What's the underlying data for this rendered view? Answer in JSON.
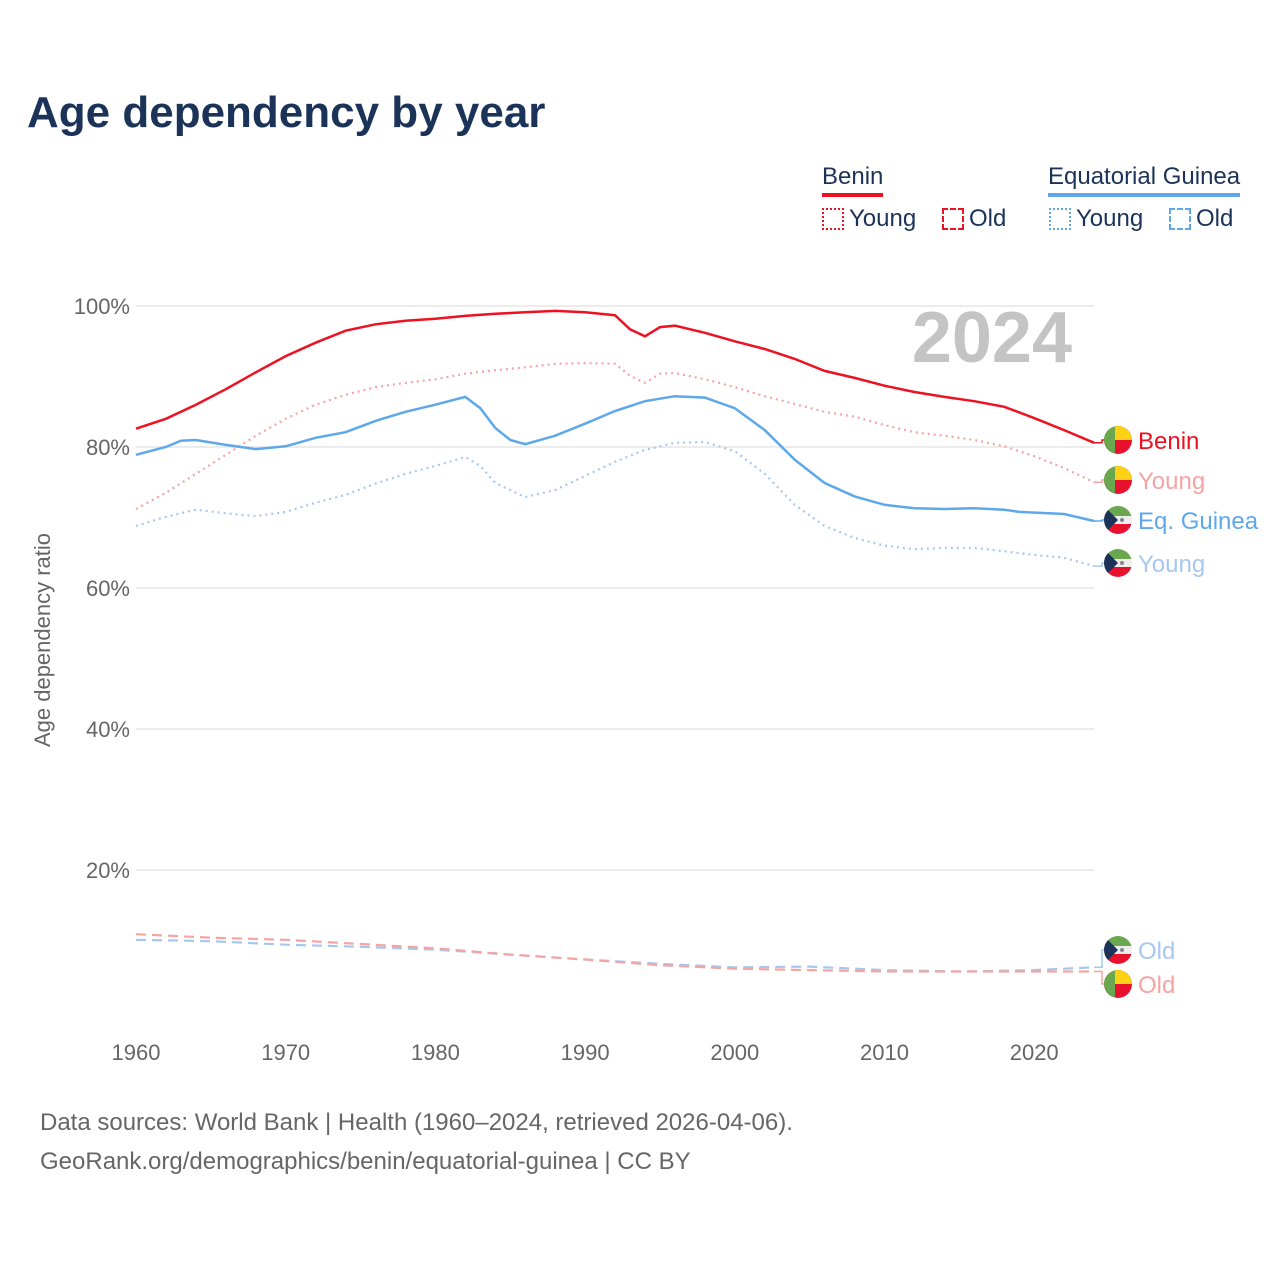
{
  "title": "Age dependency by year",
  "legend": {
    "groups": [
      {
        "name": "Benin",
        "color": "#ee1122",
        "items": [
          {
            "label": "Young",
            "style": "dotted"
          },
          {
            "label": "Old",
            "style": "dashed"
          }
        ]
      },
      {
        "name": "Equatorial Guinea",
        "color": "#5ea8ea",
        "items": [
          {
            "label": "Young",
            "style": "dotted"
          },
          {
            "label": "Old",
            "style": "dashed"
          }
        ]
      }
    ]
  },
  "year_badge": "2024",
  "source": [
    "Data sources: World Bank | Health (1960–2024, retrieved 2026-04-06).",
    "GeoRank.org/demographics/benin/equatorial-guinea | CC BY"
  ],
  "chart_data": {
    "type": "line",
    "title": "Age dependency by year",
    "xlabel": "",
    "ylabel": "Age dependency ratio",
    "xlim": [
      1960,
      2024
    ],
    "ylim": [
      0,
      100
    ],
    "xticks": [
      "1960",
      "1970",
      "1980",
      "1990",
      "2000",
      "2010",
      "2020"
    ],
    "yticks": [
      "20%",
      "40%",
      "60%",
      "80%",
      "100%"
    ],
    "grid": true,
    "series": [
      {
        "name": "Benin",
        "end_label": "Benin",
        "flag": "benin",
        "color": "#ee1122",
        "dash": "solid",
        "x": [
          1960,
          1962,
          1964,
          1966,
          1968,
          1970,
          1972,
          1974,
          1976,
          1978,
          1980,
          1982,
          1984,
          1986,
          1988,
          1990,
          1992,
          1993,
          1994,
          1995,
          1996,
          1998,
          2000,
          2002,
          2004,
          2006,
          2008,
          2010,
          2012,
          2014,
          2016,
          2018,
          2020,
          2022,
          2024
        ],
        "y": [
          82.6,
          84,
          86,
          88.2,
          90.6,
          92.9,
          94.8,
          96.5,
          97.4,
          97.9,
          98.2,
          98.6,
          98.9,
          99.1,
          99.3,
          99.1,
          98.7,
          96.7,
          95.7,
          97,
          97.2,
          96.2,
          95,
          93.9,
          92.5,
          90.8,
          89.8,
          88.7,
          87.8,
          87.1,
          86.5,
          85.7,
          84.1,
          82.4,
          80.6
        ]
      },
      {
        "name": "Benin Young",
        "end_label": "Young",
        "flag": "benin",
        "color": "#f5a3a3",
        "dash": "dotted",
        "x": [
          1960,
          1962,
          1964,
          1966,
          1968,
          1970,
          1972,
          1974,
          1976,
          1978,
          1980,
          1982,
          1984,
          1986,
          1988,
          1990,
          1992,
          1993,
          1994,
          1995,
          1996,
          1998,
          2000,
          2002,
          2004,
          2006,
          2008,
          2010,
          2012,
          2014,
          2016,
          2018,
          2020,
          2022,
          2024
        ],
        "y": [
          71.2,
          73.5,
          76.2,
          78.9,
          81.6,
          84,
          86,
          87.4,
          88.5,
          89.1,
          89.6,
          90.4,
          90.9,
          91.3,
          91.8,
          91.9,
          91.8,
          90.1,
          89.1,
          90.4,
          90.5,
          89.6,
          88.5,
          87.2,
          86.1,
          85,
          84.3,
          83.1,
          82.1,
          81.6,
          81,
          80.1,
          78.7,
          77,
          75
        ]
      },
      {
        "name": "Equatorial Guinea",
        "end_label": "Eq. Guinea",
        "flag": "eqg",
        "color": "#5ea8ea",
        "dash": "solid",
        "x": [
          1960,
          1962,
          1963,
          1964,
          1966,
          1968,
          1970,
          1972,
          1974,
          1976,
          1978,
          1980,
          1982,
          1983,
          1984,
          1985,
          1986,
          1988,
          1990,
          1992,
          1994,
          1996,
          1998,
          2000,
          2002,
          2004,
          2006,
          2008,
          2010,
          2012,
          2014,
          2016,
          2018,
          2019,
          2022,
          2024
        ],
        "y": [
          78.9,
          80,
          80.9,
          81,
          80.3,
          79.7,
          80.1,
          81.3,
          82.1,
          83.7,
          85,
          86,
          87.1,
          85.5,
          82.7,
          81,
          80.4,
          81.6,
          83.3,
          85.1,
          86.5,
          87.2,
          87,
          85.5,
          82.4,
          78.2,
          74.9,
          73,
          71.8,
          71.3,
          71.2,
          71.3,
          71.1,
          70.8,
          70.5,
          69.5
        ]
      },
      {
        "name": "Equatorial Guinea Young",
        "end_label": "Young",
        "flag": "eqg",
        "color": "#a6c8f0",
        "dash": "dotted",
        "x": [
          1960,
          1962,
          1964,
          1966,
          1968,
          1970,
          1972,
          1974,
          1976,
          1978,
          1980,
          1982,
          1983,
          1984,
          1986,
          1988,
          1990,
          1992,
          1994,
          1996,
          1998,
          2000,
          2002,
          2004,
          2006,
          2008,
          2010,
          2012,
          2014,
          2016,
          2018,
          2020,
          2022,
          2024
        ],
        "y": [
          68.8,
          70.1,
          71.1,
          70.6,
          70.2,
          70.8,
          72.1,
          73.2,
          74.8,
          76.2,
          77.3,
          78.6,
          77.3,
          74.9,
          72.9,
          73.9,
          75.9,
          77.9,
          79.6,
          80.6,
          80.7,
          79.4,
          76.2,
          71.8,
          68.8,
          67.1,
          66,
          65.5,
          65.7,
          65.7,
          65.2,
          64.7,
          64.3,
          63.1
        ]
      },
      {
        "name": "Equatorial Guinea Old",
        "end_label": "Old",
        "flag": "eqg",
        "color": "#a6c8f0",
        "dash": "dashed",
        "x": [
          1960,
          1965,
          1970,
          1975,
          1980,
          1985,
          1990,
          1995,
          2000,
          2005,
          2010,
          2015,
          2020,
          2024
        ],
        "y": [
          10.1,
          9.9,
          9.4,
          9.1,
          8.7,
          8.0,
          7.3,
          6.7,
          6.2,
          6.3,
          5.8,
          5.6,
          5.8,
          6.2
        ]
      },
      {
        "name": "Benin Old",
        "end_label": "Old",
        "flag": "benin",
        "color": "#f5a3a3",
        "dash": "dashed",
        "x": [
          1960,
          1965,
          1970,
          1975,
          1980,
          1985,
          1990,
          1995,
          2000,
          2005,
          2010,
          2015,
          2020,
          2024
        ],
        "y": [
          10.9,
          10.4,
          10.1,
          9.5,
          8.9,
          8.0,
          7.3,
          6.5,
          6.0,
          5.8,
          5.6,
          5.6,
          5.6,
          5.6
        ]
      }
    ]
  }
}
